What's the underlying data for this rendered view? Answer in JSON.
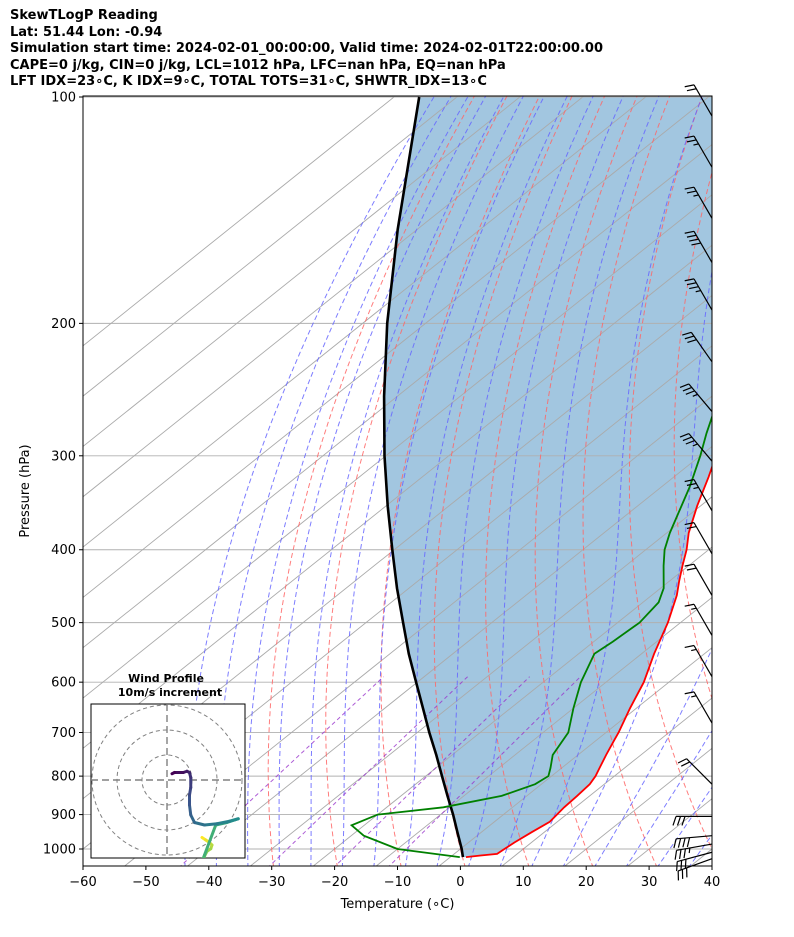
{
  "header": {
    "line1": "SkewTLogP Reading",
    "line2": "Lat: 51.44   Lon: -0.94",
    "line3": "Simulation start time: 2024-02-01_00:00:00, Valid time: 2024-02-01T22:00:00.00",
    "line4": "CAPE=0 j/kg, CIN=0 j/kg, LCL=1012 hPa, LFC=nan hPa, EQ=nan hPa",
    "line5": "LFT IDX=23∘C, K IDX=9∘C, TOTAL TOTS=31∘C, SHWTR_IDX=13∘C"
  },
  "colors": {
    "temperature": "#ff0000",
    "dewpoint": "#008000",
    "parcel": "#000000",
    "cape_fill": "#a2c6e0",
    "dry_adiabat": "#ff6666",
    "moist_adiabat": "#6666ff",
    "isotherm": "#aaaaaa",
    "mixing_ratio": "#9933cc"
  },
  "chart_data": {
    "type": "skew-t-logp",
    "xlabel": "Temperature (∘C)",
    "ylabel": "Pressure (hPa)",
    "xlim": [
      -60,
      40
    ],
    "ylim": [
      1050,
      100
    ],
    "x_ticks": [
      "−60",
      "−50",
      "−40",
      "−30",
      "−20",
      "−10",
      "0",
      "10",
      "20",
      "30",
      "40"
    ],
    "x_tick_values": [
      -60,
      -50,
      -40,
      -30,
      -20,
      -10,
      0,
      10,
      20,
      30,
      40
    ],
    "y_ticks": [
      "1000",
      "900",
      "800",
      "700",
      "600",
      "500",
      "400",
      "300",
      "200",
      "100"
    ],
    "y_tick_values": [
      1000,
      900,
      800,
      700,
      600,
      500,
      400,
      300,
      200,
      100
    ],
    "grid": true,
    "temperature": [
      [
        1025,
        2.5
      ],
      [
        1020,
        4.5
      ],
      [
        1015,
        6.8
      ],
      [
        1000,
        7.0
      ],
      [
        980,
        7.3
      ],
      [
        950,
        8.0
      ],
      [
        920,
        8.8
      ],
      [
        900,
        8.5
      ],
      [
        880,
        8.2
      ],
      [
        850,
        8.0
      ],
      [
        820,
        7.7
      ],
      [
        800,
        7.0
      ],
      [
        780,
        6.0
      ],
      [
        750,
        4.5
      ],
      [
        720,
        3.0
      ],
      [
        700,
        2.0
      ],
      [
        650,
        -1.0
      ],
      [
        600,
        -4.0
      ],
      [
        550,
        -8.0
      ],
      [
        500,
        -12.0
      ],
      [
        460,
        -16.0
      ],
      [
        440,
        -18.5
      ],
      [
        420,
        -21.0
      ],
      [
        400,
        -23.5
      ],
      [
        380,
        -26.5
      ],
      [
        350,
        -30.5
      ],
      [
        320,
        -34.5
      ],
      [
        300,
        -37.5
      ],
      [
        280,
        -41.0
      ],
      [
        260,
        -45.0
      ],
      [
        240,
        -49.5
      ],
      [
        220,
        -54.0
      ],
      [
        200,
        -57.5
      ],
      [
        180,
        -62.0
      ],
      [
        165,
        -65.0
      ],
      [
        160,
        -64.5
      ],
      [
        150,
        -60.0
      ],
      [
        140,
        -54.0
      ],
      [
        130,
        -47.0
      ],
      [
        120,
        -42.0
      ],
      [
        110,
        -38.5
      ],
      [
        100,
        -34.5
      ]
    ],
    "dewpoint": [
      [
        1025,
        1.5
      ],
      [
        1000,
        -10.0
      ],
      [
        960,
        -18.0
      ],
      [
        930,
        -22.0
      ],
      [
        900,
        -20.0
      ],
      [
        880,
        -11.0
      ],
      [
        850,
        -4.0
      ],
      [
        820,
        -1.0
      ],
      [
        800,
        -0.5
      ],
      [
        780,
        -1.8
      ],
      [
        750,
        -4.0
      ],
      [
        700,
        -6.0
      ],
      [
        650,
        -10.0
      ],
      [
        600,
        -14.0
      ],
      [
        550,
        -17.5
      ],
      [
        530,
        -17.0
      ],
      [
        500,
        -16.5
      ],
      [
        470,
        -17.5
      ],
      [
        450,
        -19.5
      ],
      [
        420,
        -24.0
      ],
      [
        400,
        -27.0
      ],
      [
        380,
        -29.5
      ],
      [
        350,
        -33.0
      ],
      [
        330,
        -35.5
      ],
      [
        300,
        -40.0
      ],
      [
        280,
        -43.5
      ],
      [
        260,
        -47.0
      ],
      [
        240,
        -50.5
      ],
      [
        220,
        -55.0
      ],
      [
        200,
        -59.0
      ],
      [
        180,
        -64.0
      ],
      [
        170,
        -66.5
      ],
      [
        160,
        -67.5
      ],
      [
        150,
        -67.0
      ],
      [
        140,
        -65.5
      ],
      [
        130,
        -62.0
      ],
      [
        120,
        -61.0
      ],
      [
        110,
        -63.5
      ],
      [
        100,
        -58.0
      ]
    ],
    "parcel": [
      [
        1025,
        2.0
      ],
      [
        1000,
        0.2
      ],
      [
        950,
        -3.8
      ],
      [
        900,
        -8.0
      ],
      [
        850,
        -12.6
      ],
      [
        800,
        -17.4
      ],
      [
        750,
        -22.5
      ],
      [
        700,
        -28.1
      ],
      [
        650,
        -33.9
      ],
      [
        600,
        -40.2
      ],
      [
        550,
        -47.0
      ],
      [
        500,
        -54.1
      ],
      [
        450,
        -61.9
      ],
      [
        400,
        -70.3
      ],
      [
        350,
        -79.7
      ],
      [
        300,
        -90.2
      ],
      [
        250,
        -102.1
      ],
      [
        200,
        -116.1
      ],
      [
        150,
        -133.1
      ],
      [
        100,
        -156.0
      ]
    ],
    "wind_barbs": [
      {
        "p": 1030,
        "speed_kt": 30,
        "dir_deg": 250
      },
      {
        "p": 1010,
        "speed_kt": 30,
        "dir_deg": 255
      },
      {
        "p": 985,
        "speed_kt": 35,
        "dir_deg": 260
      },
      {
        "p": 960,
        "speed_kt": 40,
        "dir_deg": 265
      },
      {
        "p": 905,
        "speed_kt": 30,
        "dir_deg": 270
      },
      {
        "p": 820,
        "speed_kt": 20,
        "dir_deg": 315
      },
      {
        "p": 680,
        "speed_kt": 15,
        "dir_deg": 330
      },
      {
        "p": 590,
        "speed_kt": 15,
        "dir_deg": 330
      },
      {
        "p": 520,
        "speed_kt": 15,
        "dir_deg": 330
      },
      {
        "p": 460,
        "speed_kt": 20,
        "dir_deg": 330
      },
      {
        "p": 405,
        "speed_kt": 20,
        "dir_deg": 330
      },
      {
        "p": 355,
        "speed_kt": 25,
        "dir_deg": 330
      },
      {
        "p": 305,
        "speed_kt": 35,
        "dir_deg": 320
      },
      {
        "p": 262,
        "speed_kt": 35,
        "dir_deg": 320
      },
      {
        "p": 225,
        "speed_kt": 30,
        "dir_deg": 325
      },
      {
        "p": 192,
        "speed_kt": 35,
        "dir_deg": 330
      },
      {
        "p": 166,
        "speed_kt": 40,
        "dir_deg": 330
      },
      {
        "p": 145,
        "speed_kt": 25,
        "dir_deg": 330
      },
      {
        "p": 124,
        "speed_kt": 25,
        "dir_deg": 330
      },
      {
        "p": 106,
        "speed_kt": 20,
        "dir_deg": 330
      }
    ],
    "hodograph": {
      "title": "Wind Profile",
      "subtitle": "10m/s increment",
      "points": [
        [
          14.0,
          -23.0
        ],
        [
          15.5,
          -24.0
        ],
        [
          17.0,
          -25.0
        ],
        [
          18.0,
          -26.0
        ],
        [
          17.5,
          -27.5
        ],
        [
          16.0,
          -28.5
        ],
        [
          15.0,
          -30.5
        ],
        [
          14.5,
          -32.5
        ],
        [
          14.0,
          -34.0
        ],
        [
          13.0,
          -35.0
        ],
        [
          15.0,
          -30.0
        ],
        [
          19.5,
          -18.0
        ],
        [
          24.0,
          -17.0
        ],
        [
          27.0,
          -16.0
        ],
        [
          28.5,
          -15.5
        ],
        [
          25.0,
          -16.5
        ],
        [
          20.0,
          -17.5
        ],
        [
          15.0,
          -18.0
        ],
        [
          11.0,
          -17.0
        ],
        [
          9.5,
          -14.0
        ],
        [
          9.0,
          -10.0
        ],
        [
          9.0,
          -6.0
        ],
        [
          9.5,
          -3.0
        ],
        [
          9.5,
          1.0
        ],
        [
          9.0,
          3.0
        ],
        [
          8.0,
          3.5
        ],
        [
          6.5,
          3.0
        ],
        [
          3.0,
          3.0
        ],
        [
          2.0,
          2.5
        ]
      ]
    }
  }
}
